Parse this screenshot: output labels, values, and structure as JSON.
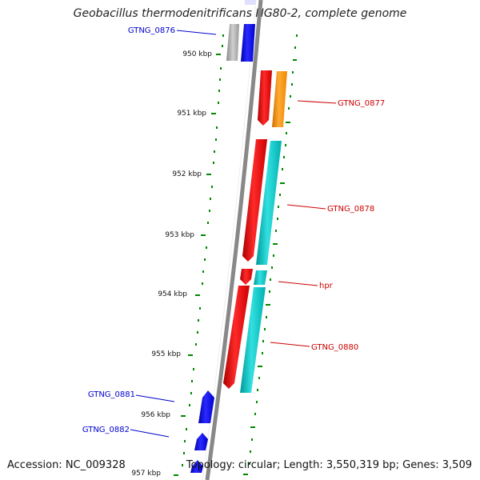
{
  "title": "Geobacillus thermodenitrificans NG80-2, complete genome",
  "footer": {
    "accession": "Accession: NC_009328",
    "topology": "Topology: circular; Length: 3,550,319 bp; Genes: 3,509"
  },
  "ticks": [
    "950 kbp",
    "951 kbp",
    "952 kbp",
    "953 kbp",
    "954 kbp",
    "955 kbp",
    "956 kbp",
    "957 kbp"
  ],
  "labels": {
    "forward": [
      "GTNG_0877",
      "GTNG_0878",
      "hpr",
      "GTNG_0880"
    ],
    "reverse": [
      "GTNG_0876",
      "GTNG_0881",
      "GTNG_0882"
    ]
  },
  "colors": {
    "forward_cds": "#ff0000",
    "reverse_cds": "#0000ff",
    "orange": "#ff9900",
    "cyan": "#00cccc",
    "gray": "#aaaaaa",
    "backbone": "#888888",
    "tick_green": "#008800",
    "forward_label": "#cc0000",
    "reverse_label": "#0000cc"
  }
}
